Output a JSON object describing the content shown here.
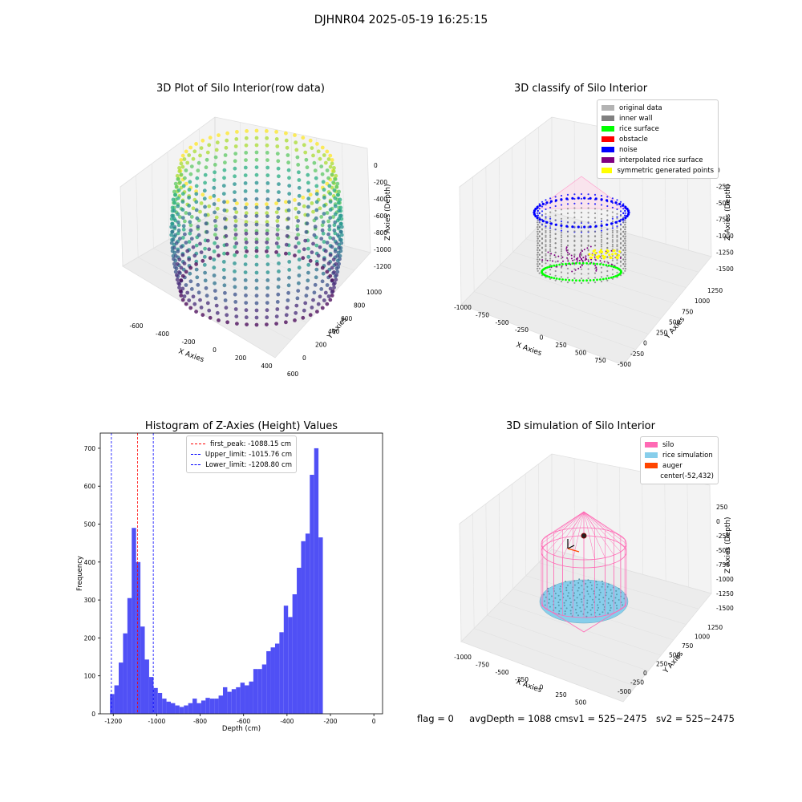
{
  "suptitle": "DJHNR04 2025-05-19 16:25:15",
  "status": {
    "flag": "flag = 0",
    "avg": "avgDepth = 1088 cmsv1 = 525~2475",
    "sv2": "sv2 = 525~2475"
  },
  "chart_data": [
    {
      "type": "scatter",
      "panel": "raw",
      "title": "3D Plot of Silo Interior(row data)",
      "xlabel": "X Axies",
      "ylabel": "Y Axies",
      "zlabel": "Z Axies (Depth)",
      "x_ticks": [
        "-600",
        "-400",
        "-200",
        "0",
        "200",
        "400",
        "600"
      ],
      "y_ticks": [
        "0",
        "200",
        "400",
        "600",
        "800",
        "1000"
      ],
      "z_ticks": [
        "0",
        "-200",
        "-400",
        "-600",
        "-800",
        "-1000",
        "-1200"
      ],
      "colormap": "viridis"
    },
    {
      "type": "scatter",
      "panel": "classify",
      "title": "3D classify of Silo Interior",
      "xlabel": "X Axies",
      "ylabel": "Y Axies",
      "zlabel": "Z Axies (Depth)",
      "x_ticks": [
        "-1000",
        "-750",
        "-500",
        "-250",
        "0",
        "250",
        "500",
        "750"
      ],
      "y_ticks": [
        "-500",
        "-250",
        "0",
        "250",
        "500",
        "750",
        "1000",
        "1250"
      ],
      "z_ticks": [
        "0",
        "-250",
        "-500",
        "-750",
        "-1000",
        "-1250",
        "-1500"
      ],
      "legend": [
        {
          "label": "original data",
          "color": "#b3b3b3"
        },
        {
          "label": "inner wall",
          "color": "#808080"
        },
        {
          "label": "rice surface",
          "color": "#00ff00"
        },
        {
          "label": "obstacle",
          "color": "#ff0000"
        },
        {
          "label": "noise",
          "color": "#0000ff"
        },
        {
          "label": "interpolated rice surface",
          "color": "#800080"
        },
        {
          "label": "symmetric generated points",
          "color": "#ffff00"
        }
      ]
    },
    {
      "type": "bar",
      "panel": "histogram",
      "title": "Histogram of Z-Axies (Height) Values",
      "xlabel": "Depth (cm)",
      "ylabel": "Frequency",
      "xlim": [
        -1260,
        40
      ],
      "ylim": [
        0,
        740
      ],
      "x_ticks": [
        -1200,
        -1000,
        -800,
        -600,
        -400,
        -200,
        0
      ],
      "y_ticks": [
        0,
        100,
        200,
        300,
        400,
        500,
        600,
        700
      ],
      "bar_color": "#5050f5",
      "bin_start": -1215,
      "bin_width": 20,
      "values": [
        52,
        75,
        135,
        212,
        305,
        490,
        400,
        230,
        143,
        97,
        68,
        55,
        40,
        32,
        28,
        22,
        18,
        22,
        28,
        40,
        28,
        35,
        42,
        40,
        40,
        48,
        70,
        58,
        65,
        70,
        82,
        75,
        85,
        118,
        118,
        130,
        165,
        175,
        185,
        215,
        285,
        255,
        315,
        385,
        455,
        475,
        630,
        700,
        465
      ],
      "vlines": [
        {
          "label": "first_peak: -1088.15 cm",
          "value": -1088.15,
          "color": "#ff0000"
        },
        {
          "label": "Upper_limit: -1015.76 cm",
          "value": -1015.76,
          "color": "#0000ff"
        },
        {
          "label": "Lower_limit: -1208.80 cm",
          "value": -1208.8,
          "color": "#0000ff"
        }
      ]
    },
    {
      "type": "scatter",
      "panel": "simulation",
      "title": "3D simulation of Silo Interior",
      "xlabel": "X Axies",
      "ylabel": "Y Axies",
      "zlabel": "Z Axies (Depth)",
      "x_ticks": [
        "-1000",
        "-750",
        "-500",
        "-250",
        "0",
        "250",
        "500",
        "750"
      ],
      "y_ticks": [
        "-500",
        "-250",
        "0",
        "250",
        "500",
        "750",
        "1000",
        "1250"
      ],
      "z_ticks": [
        "250",
        "0",
        "-250",
        "-500",
        "-750",
        "-1000",
        "-1250",
        "-1500"
      ],
      "legend": [
        {
          "label": "silo",
          "color": "#ff69b4"
        },
        {
          "label": "rice simulation",
          "color": "#87ceeb"
        },
        {
          "label": "auger",
          "color": "#ff4500"
        },
        {
          "label": "center(-52,432)",
          "color": ""
        }
      ]
    }
  ]
}
